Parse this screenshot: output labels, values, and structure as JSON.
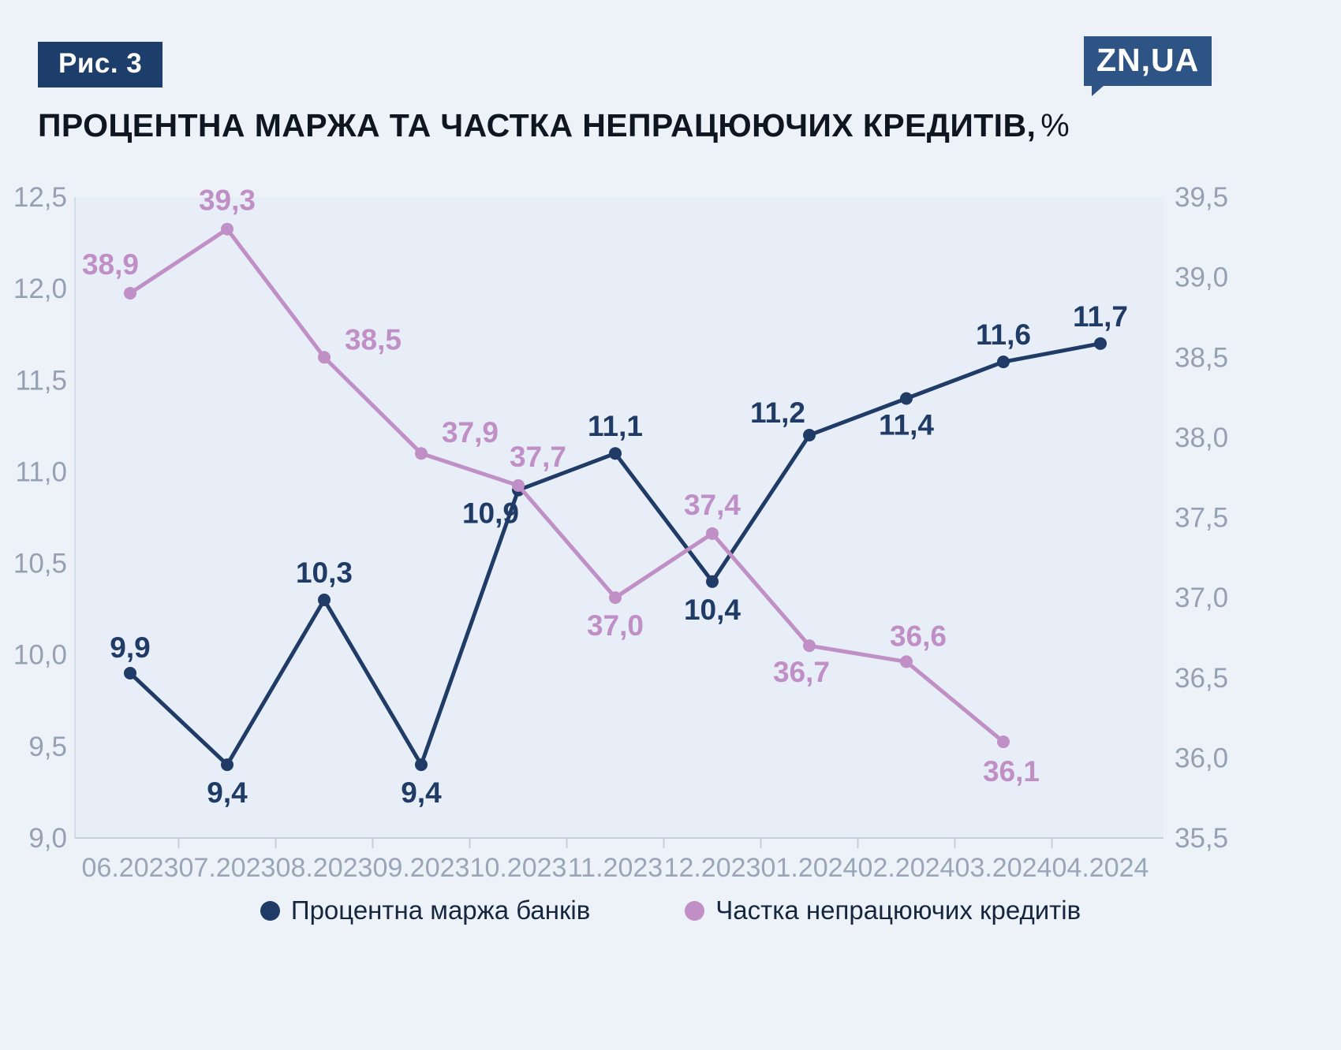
{
  "figure": {
    "label": "Рис. 3"
  },
  "logo": {
    "text": "ZN,UA"
  },
  "title": {
    "text": "ПРОЦЕНТНА МАРЖА ТА ЧАСТКА НЕПРАЦЮЮЧИХ КРЕДИТІВ,",
    "unit": "%"
  },
  "colors": {
    "page_background": "#edf2f9",
    "plot_background": "#e7eef7",
    "navy": "#1f3b66",
    "purple": "#c08fc6",
    "axis_line": "#c3cddb",
    "axis_text": "#95a1b3",
    "badge_background": "#1d3e6b",
    "logo_background": "#2e5385"
  },
  "chart_data": {
    "type": "line",
    "title": "ПРОЦЕНТНА МАРЖА ТА ЧАСТКА НЕПРАЦЮЮЧИХ КРЕДИТІВ, %",
    "grid": false,
    "legend_position": "bottom",
    "categories": [
      "06.2023",
      "07.2023",
      "08.2023",
      "09.2023",
      "10.2023",
      "11.2023",
      "12.2023",
      "01.2024",
      "02.2024",
      "03.2024",
      "04.2024"
    ],
    "series": [
      {
        "name": "Процентна маржа банків",
        "axis": "left",
        "color": "#1f3b66",
        "values": [
          9.9,
          9.4,
          10.3,
          9.4,
          10.9,
          11.1,
          10.4,
          11.2,
          11.4,
          11.6,
          11.7
        ],
        "labels": [
          "9,9",
          "9,4",
          "10,3",
          "9,4",
          "10,9",
          "11,1",
          "10,4",
          "11,2",
          "11,4",
          "11,6",
          "11,7"
        ],
        "label_offsets": [
          [
            0,
            -20
          ],
          [
            0,
            48
          ],
          [
            0,
            -22
          ],
          [
            0,
            48
          ],
          [
            -35,
            42
          ],
          [
            0,
            -22
          ],
          [
            0,
            48
          ],
          [
            -40,
            -16
          ],
          [
            0,
            46
          ],
          [
            0,
            -22
          ],
          [
            0,
            -22
          ]
        ]
      },
      {
        "name": "Частка непрацюючих кредитів",
        "axis": "right",
        "color": "#c08fc6",
        "values": [
          38.9,
          39.3,
          38.5,
          37.9,
          37.7,
          37.0,
          37.4,
          36.7,
          36.6,
          36.1,
          null
        ],
        "labels": [
          "38,9",
          "39,3",
          "38,5",
          "37,9",
          "37,7",
          "37,0",
          "37,4",
          "36,7",
          "36,6",
          "36,1",
          null
        ],
        "label_offsets": [
          [
            -25,
            -24
          ],
          [
            0,
            -24
          ],
          [
            62,
            -10
          ],
          [
            62,
            -14
          ],
          [
            25,
            -24
          ],
          [
            0,
            48
          ],
          [
            0,
            -24
          ],
          [
            -10,
            46
          ],
          [
            15,
            -20
          ],
          [
            10,
            50
          ],
          [
            0,
            0
          ]
        ]
      }
    ],
    "left_axis": {
      "min": 9.0,
      "max": 12.5,
      "step": 0.5,
      "ticks": [
        "9,0",
        "9,5",
        "10,0",
        "10,5",
        "11,0",
        "11,5",
        "12,0",
        "12,5"
      ]
    },
    "right_axis": {
      "min": 35.5,
      "max": 39.5,
      "step": 0.5,
      "ticks": [
        "35,5",
        "36,0",
        "36,5",
        "37,0",
        "37,5",
        "38,0",
        "38,5",
        "39,0",
        "39,5"
      ]
    }
  }
}
